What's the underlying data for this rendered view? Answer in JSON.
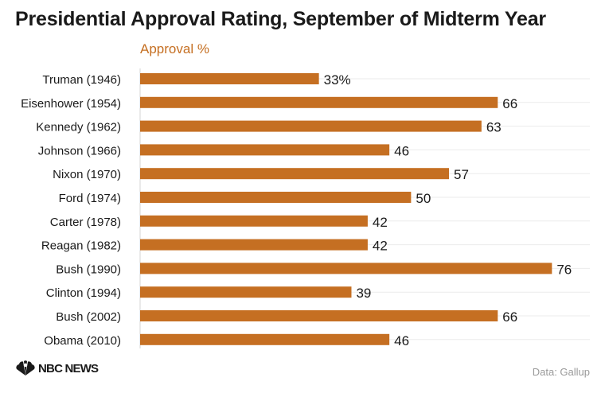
{
  "title": "Presidential Approval Rating, September of Midterm Year",
  "source": "Data: Gallup",
  "brand": "NBC NEWS",
  "chart_data": {
    "type": "bar",
    "orientation": "horizontal",
    "series_label": "Approval %",
    "categories": [
      "Truman (1946)",
      "Eisenhower (1954)",
      "Kennedy (1962)",
      "Johnson (1966)",
      "Nixon (1970)",
      "Ford (1974)",
      "Carter (1978)",
      "Reagan (1982)",
      "Bush (1990)",
      "Clinton (1994)",
      "Bush (2002)",
      "Obama (2010)"
    ],
    "values": [
      33,
      66,
      63,
      46,
      57,
      50,
      42,
      42,
      76,
      39,
      66,
      46
    ],
    "value_labels": [
      "33%",
      "66",
      "63",
      "46",
      "57",
      "50",
      "42",
      "42",
      "76",
      "39",
      "66",
      "46"
    ],
    "xlim": [
      0,
      83
    ],
    "bar_color": "#c56f22",
    "grid": true
  },
  "colors": {
    "accent": "#c56f22",
    "text": "#1a1a1a",
    "muted": "#999999",
    "grid": "#ebebeb"
  }
}
